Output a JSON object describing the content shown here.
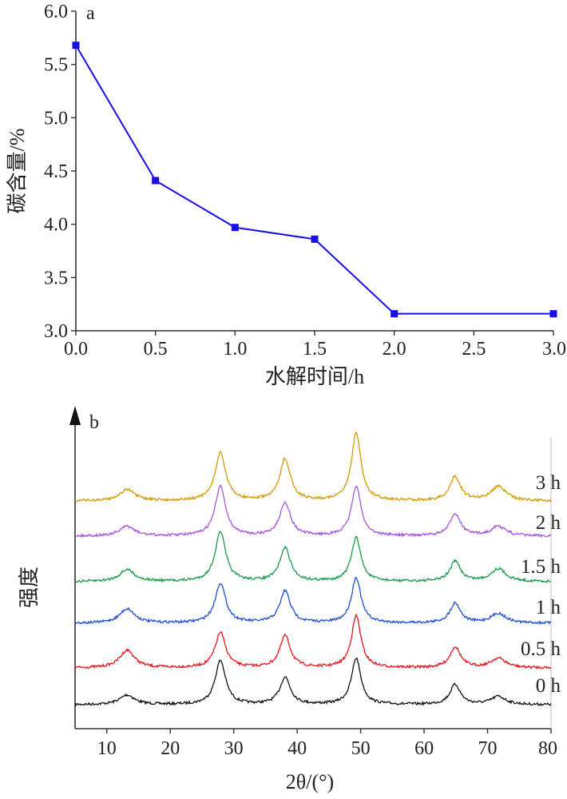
{
  "chart_data": [
    {
      "type": "line",
      "panel_label": "a",
      "xlabel": "水解时间/h",
      "ylabel": "碳含量/%",
      "xlim": [
        0.0,
        3.0
      ],
      "ylim": [
        3.0,
        6.0
      ],
      "xticks": [
        "0.0",
        "0.5",
        "1.0",
        "1.5",
        "2.0",
        "2.5",
        "3.0"
      ],
      "yticks": [
        "3.0",
        "3.5",
        "4.0",
        "4.5",
        "5.0",
        "5.5",
        "6.0"
      ],
      "grid": false,
      "series": [
        {
          "x": [
            0.0,
            0.5,
            1.0,
            1.5,
            2.0,
            3.0
          ],
          "y": [
            5.68,
            4.41,
            3.97,
            3.86,
            3.16,
            3.16
          ],
          "color": "#1a0ee6",
          "marker": "square"
        }
      ]
    },
    {
      "type": "line",
      "panel_label": "b",
      "xlabel": "2θ/(°)",
      "ylabel": "强度",
      "xlim": [
        5,
        80
      ],
      "xticks": [
        "10",
        "20",
        "30",
        "40",
        "50",
        "60",
        "70",
        "80"
      ],
      "y_axis_ticks": false,
      "grid": false,
      "peak_positions_2theta": [
        13.2,
        27.9,
        38.1,
        49.3,
        64.9,
        71.7
      ],
      "series": [
        {
          "name": "0 h",
          "color": "#111111",
          "peak_heights": [
            12,
            55,
            34,
            58,
            25,
            10
          ]
        },
        {
          "name": "0.5 h",
          "color": "#e8121b",
          "peak_heights": [
            22,
            44,
            40,
            65,
            26,
            12
          ]
        },
        {
          "name": "1 h",
          "color": "#1a4fd6",
          "peak_heights": [
            18,
            50,
            40,
            57,
            25,
            12
          ]
        },
        {
          "name": "1.5 h",
          "color": "#1a9a4a",
          "peak_heights": [
            15,
            62,
            42,
            55,
            25,
            16
          ]
        },
        {
          "name": "2 h",
          "color": "#a855e0",
          "peak_heights": [
            12,
            62,
            42,
            62,
            28,
            12
          ]
        },
        {
          "name": "3 h",
          "color": "#d49a00",
          "peak_heights": [
            14,
            60,
            52,
            85,
            30,
            18
          ]
        }
      ]
    }
  ]
}
